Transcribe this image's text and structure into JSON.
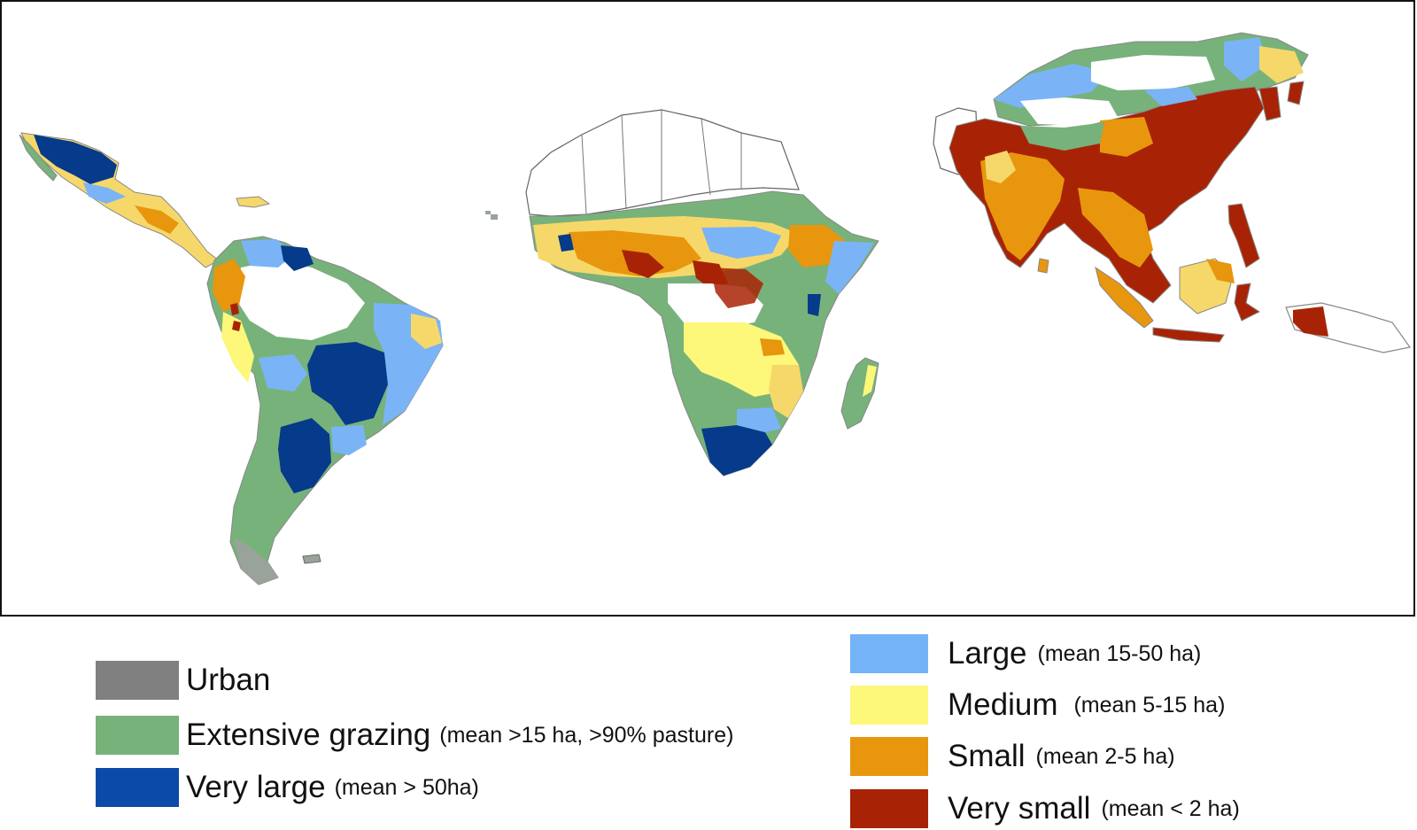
{
  "map": {
    "regions": [
      "Latin America",
      "Africa",
      "Asia"
    ],
    "colors": {
      "outline": "#888888",
      "urban": "#808080",
      "grazing": "#77b27a",
      "very_large": "#063a8a",
      "large": "#7ab4f6",
      "medium": "#fdf77a",
      "small": "#e8960d",
      "very_small": "#a82305"
    }
  },
  "legend": {
    "urban": {
      "label": "Urban",
      "note": "",
      "color": "#808080"
    },
    "grazing": {
      "label": "Extensive grazing",
      "note": "(mean >15 ha, >90% pasture)",
      "color": "#77b27a"
    },
    "very_large": {
      "label": "Very large",
      "note": "(mean > 50ha)",
      "color": "#0b4aa7"
    },
    "large": {
      "label": "Large",
      "note": "(mean 15-50 ha)",
      "color": "#74b3f7"
    },
    "medium": {
      "label": "Medium",
      "note": "(mean 5-15 ha)",
      "color": "#fdf77a"
    },
    "small": {
      "label": "Small",
      "note": "(mean 2-5 ha)",
      "color": "#e8960d"
    },
    "very_small": {
      "label": "Very small",
      "note": "(mean < 2 ha)",
      "color": "#a82305"
    }
  }
}
